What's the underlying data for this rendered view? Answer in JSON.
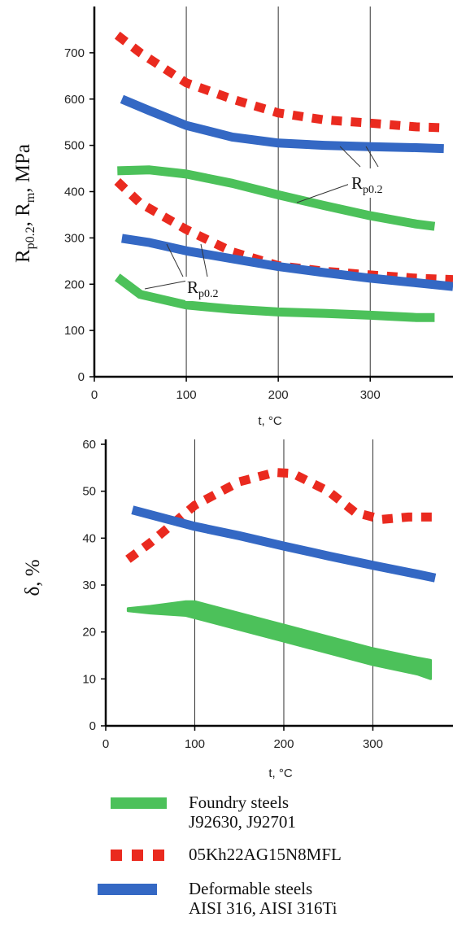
{
  "colors": {
    "foundry": "#4cc15a",
    "steel_05kh": "#ea2a1f",
    "deformable": "#3468c4"
  },
  "chart_data": [
    {
      "type": "line",
      "ylabel": "Rp0.2, Rm, MPa",
      "ylabel_parts": {
        "r1": "R",
        "s1": "p0.2",
        "rest1": ", R",
        "s2": "m",
        "rest2": ", MPa"
      },
      "xlabel": "t, °C",
      "xlim": [
        0,
        390
      ],
      "ylim": [
        0,
        800
      ],
      "xticks": [
        "0",
        "100",
        "200",
        "300"
      ],
      "yticks": [
        "0",
        "100",
        "200",
        "300",
        "400",
        "500",
        "600",
        "700"
      ],
      "grid": "vertical",
      "annotations": [
        {
          "text": "R",
          "sub": "p0.2",
          "x": 330,
          "y": 425
        },
        {
          "text": "R",
          "sub": "p0.2",
          "x": 108,
          "y": 188
        }
      ],
      "series": [
        {
          "name": "05Kh22AG15N8MFL",
          "group": "steel_05kh",
          "style": "dashed",
          "x": [
            25,
            50,
            100,
            150,
            200,
            250,
            300,
            350,
            380
          ],
          "y": [
            738,
            700,
            635,
            600,
            570,
            555,
            548,
            540,
            538
          ]
        },
        {
          "name": "Deformable steels AISI 316, AISI 316Ti",
          "group": "deformable",
          "style": "solid",
          "x": [
            30,
            60,
            100,
            150,
            200,
            250,
            300,
            350,
            380
          ],
          "y": [
            600,
            575,
            543,
            518,
            505,
            500,
            497,
            495,
            493
          ]
        },
        {
          "name": "Foundry steels J92630, J92701",
          "group": "foundry",
          "style": "solid",
          "x": [
            25,
            60,
            100,
            150,
            200,
            250,
            300,
            350,
            370
          ],
          "y": [
            445,
            447,
            438,
            418,
            393,
            370,
            348,
            330,
            325
          ]
        },
        {
          "name": "05Kh22AG15N8MFL",
          "group": "steel_05kh",
          "style": "dashed",
          "x": [
            25,
            50,
            100,
            150,
            200,
            250,
            300,
            350,
            390
          ],
          "y": [
            422,
            375,
            318,
            270,
            240,
            228,
            220,
            213,
            210
          ]
        },
        {
          "name": "Deformable steels AISI 316, AISI 316Ti",
          "group": "deformable",
          "style": "solid",
          "x": [
            30,
            60,
            100,
            150,
            200,
            250,
            300,
            350,
            390
          ],
          "y": [
            299,
            290,
            272,
            255,
            238,
            225,
            213,
            203,
            195
          ]
        },
        {
          "name": "Foundry steels J92630, J92701",
          "group": "foundry",
          "style": "solid",
          "x": [
            25,
            50,
            100,
            150,
            200,
            250,
            300,
            350,
            370
          ],
          "y": [
            215,
            178,
            155,
            146,
            140,
            137,
            133,
            128,
            128
          ]
        }
      ]
    },
    {
      "type": "line",
      "ylabel": "δ, %",
      "xlabel": "t, °C",
      "xlim": [
        0,
        390
      ],
      "ylim": [
        0,
        60
      ],
      "xticks": [
        "0",
        "100",
        "200",
        "300"
      ],
      "yticks": [
        "0",
        "10",
        "20",
        "30",
        "40",
        "50",
        "60"
      ],
      "grid": "vertical",
      "series": [
        {
          "name": "05Kh22AG15N8MFL",
          "group": "steel_05kh",
          "style": "dashed",
          "x": [
            25,
            50,
            100,
            150,
            190,
            210,
            250,
            280,
            310,
            340,
            370
          ],
          "y": [
            35.5,
            39,
            47,
            52,
            54,
            53.8,
            50,
            45.5,
            44,
            44.5,
            44.5
          ]
        },
        {
          "name": "Deformable steels AISI 316, AISI 316Ti",
          "group": "deformable",
          "style": "solid",
          "x": [
            30,
            100,
            150,
            200,
            250,
            300,
            350,
            370
          ],
          "y": [
            46,
            42.5,
            40.5,
            38.3,
            36.2,
            34.2,
            32.3,
            31.5
          ]
        },
        {
          "name": "Foundry steels J92630, J92701",
          "group": "foundry",
          "style": "band",
          "x": [
            25,
            50,
            90,
            100,
            150,
            200,
            250,
            300,
            350,
            365
          ],
          "y_upper": [
            25,
            25.5,
            26.5,
            26.5,
            24,
            21.5,
            19,
            16.5,
            14.5,
            14
          ],
          "y_lower": [
            24.5,
            24,
            23.5,
            23,
            20.5,
            18,
            15.5,
            13,
            11,
            10
          ]
        }
      ]
    }
  ],
  "legend": [
    {
      "group": "foundry",
      "style": "solid",
      "label_lines": [
        "Foundry steels",
        "J92630, J92701"
      ]
    },
    {
      "group": "steel_05kh",
      "style": "dashed",
      "label_lines": [
        "05Kh22AG15N8MFL"
      ]
    },
    {
      "group": "deformable",
      "style": "solid",
      "label_lines": [
        "Deformable steels",
        "AISI 316, AISI 316Ti"
      ]
    }
  ]
}
